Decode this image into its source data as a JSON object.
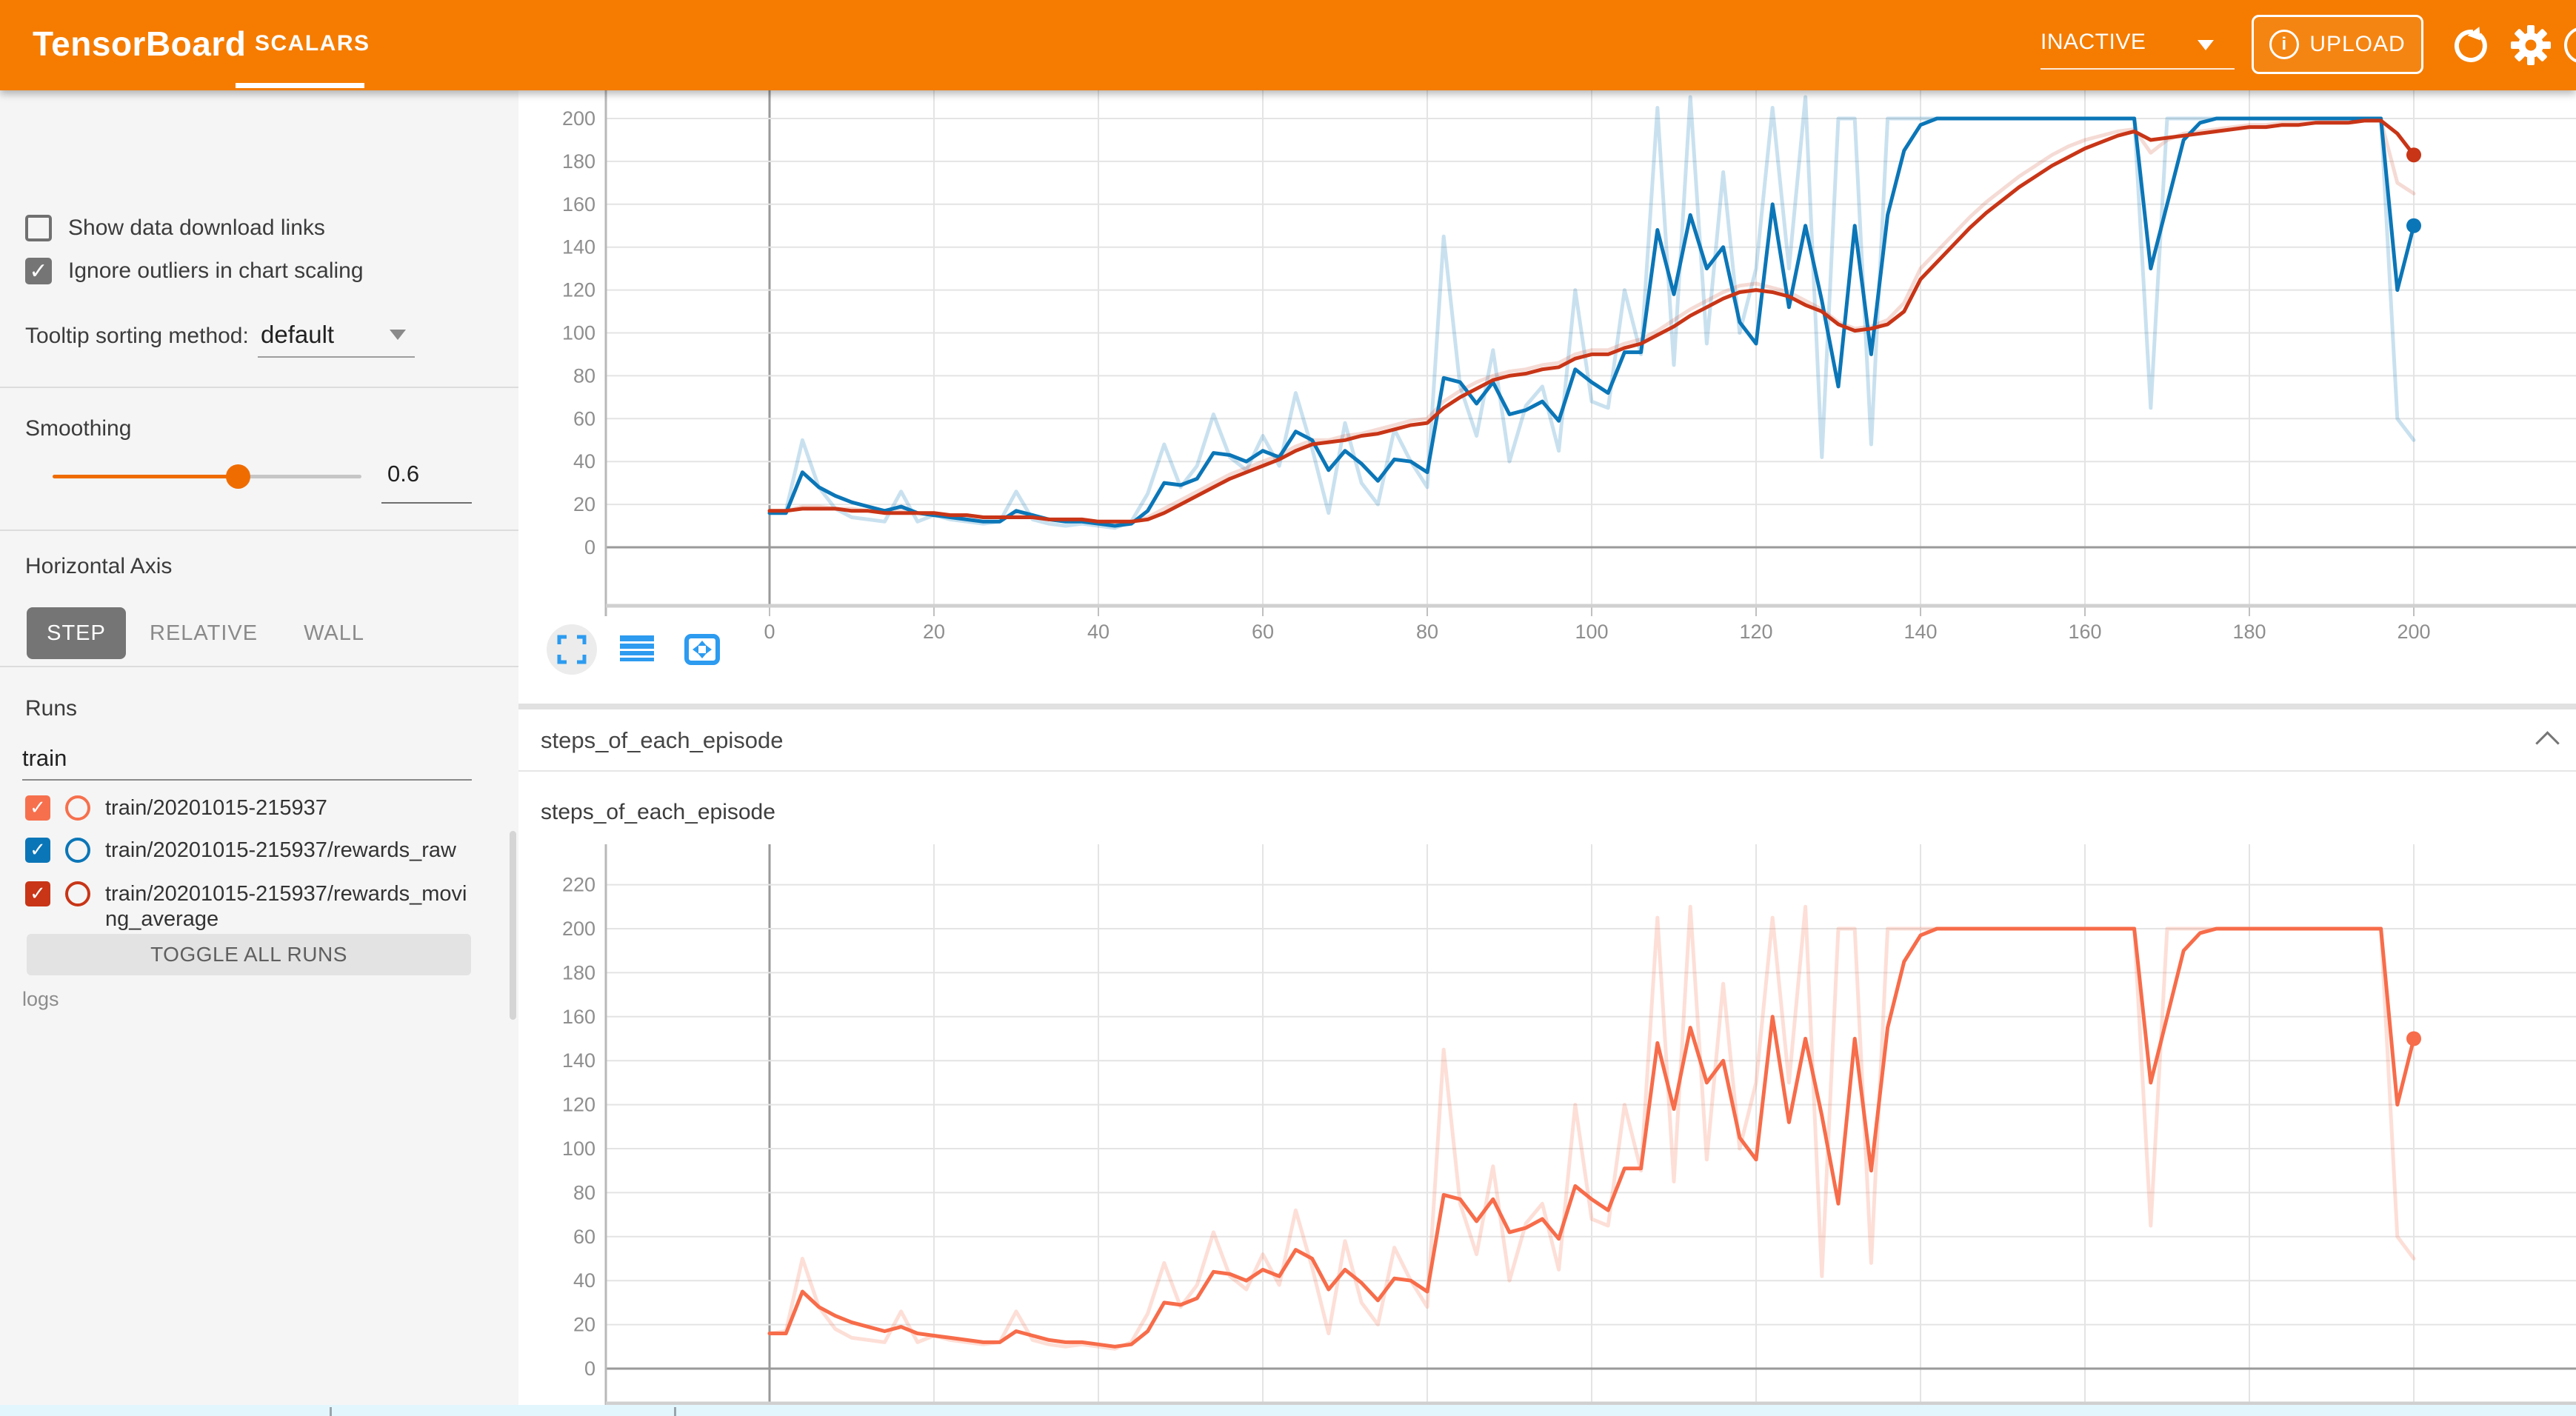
{
  "header": {
    "app_title": "TensorBoard",
    "active_tab": "SCALARS",
    "status_dropdown": "INACTIVE",
    "upload_button": "UPLOAD",
    "colors": {
      "header_bg": "#f57c00",
      "accent": "#ef6c00",
      "toolbar_icon_blue": "#2d9bf0"
    },
    "icons": [
      "info-icon",
      "refresh-icon",
      "gear-icon",
      "help-icon"
    ]
  },
  "sidebar": {
    "checkboxes": [
      {
        "label": "Show data download links",
        "checked": false
      },
      {
        "label": "Ignore outliers in chart scaling",
        "checked": true
      }
    ],
    "tooltip_sort": {
      "label": "Tooltip sorting method:",
      "value": "default"
    },
    "smoothing": {
      "label": "Smoothing",
      "value": "0.6",
      "fraction": 0.6
    },
    "horizontal_axis": {
      "label": "Horizontal Axis",
      "options": [
        "STEP",
        "RELATIVE",
        "WALL"
      ],
      "selected": "STEP"
    },
    "runs": {
      "label": "Runs",
      "filter_value": "train",
      "items": [
        {
          "label": "train/20201015-215937",
          "color": "#f6704d",
          "checked": true
        },
        {
          "label": "train/20201015-215937/rewards_raw",
          "color": "#0b76b7",
          "checked": true
        },
        {
          "label": "train/20201015-215937/rewards_moving_average",
          "color": "#c83517",
          "checked": true
        }
      ],
      "toggle_button": "TOGGLE ALL RUNS",
      "footer": "logs"
    }
  },
  "main": {
    "section_title": "steps_of_each_episode",
    "chart2_title": "steps_of_each_episode",
    "toolbar_icons": [
      "fullscreen-icon",
      "log-scale-icon",
      "fit-domain-icon"
    ]
  },
  "chart_data": [
    {
      "type": "line",
      "title": "",
      "x": {
        "start": 0,
        "step": 2,
        "end": 200
      },
      "xticks": [
        0,
        20,
        40,
        60,
        80,
        100,
        120,
        140,
        160,
        180,
        200
      ],
      "yticks": [
        0,
        20,
        40,
        60,
        80,
        100,
        120,
        140,
        160,
        180,
        200
      ],
      "ylim": [
        -27,
        213
      ],
      "grid": true,
      "series": [
        {
          "name": "train/20201015-215937/rewards_raw (unsmoothed)",
          "color": "#0b76b7",
          "opacity": 0.22,
          "width": 5,
          "values": [
            16,
            17,
            50,
            28,
            18,
            14,
            13,
            12,
            26,
            12,
            15,
            13,
            12,
            11,
            12,
            26,
            13,
            11,
            10,
            11,
            10,
            9,
            12,
            25,
            48,
            28,
            38,
            62,
            42,
            36,
            52,
            38,
            72,
            46,
            16,
            58,
            30,
            20,
            55,
            40,
            28,
            145,
            75,
            52,
            92,
            40,
            66,
            75,
            45,
            120,
            68,
            65,
            120,
            90,
            205,
            85,
            210,
            95,
            175,
            100,
            130,
            205,
            130,
            210,
            42,
            200,
            200,
            48,
            200,
            200,
            200,
            200,
            200,
            200,
            200,
            200,
            200,
            200,
            200,
            200,
            200,
            200,
            200,
            200,
            65,
            200,
            200,
            200,
            200,
            200,
            200,
            200,
            200,
            200,
            200,
            200,
            200,
            200,
            200,
            60,
            50
          ]
        },
        {
          "name": "train/20201015-215937/rewards_moving_average (unsmoothed)",
          "color": "#c83517",
          "opacity": 0.18,
          "width": 5,
          "values": [
            17,
            17,
            19,
            19,
            18,
            18,
            17,
            17,
            17,
            16,
            16,
            15,
            15,
            14,
            14,
            15,
            14,
            13,
            13,
            13,
            12,
            12,
            12,
            14,
            18,
            22,
            26,
            30,
            34,
            37,
            40,
            43,
            47,
            50,
            50,
            52,
            53,
            55,
            57,
            59,
            60,
            68,
            73,
            77,
            80,
            82,
            83,
            85,
            86,
            90,
            92,
            92,
            95,
            97,
            101,
            106,
            111,
            115,
            119,
            122,
            123,
            121,
            119,
            115,
            111,
            105,
            102,
            103,
            106,
            114,
            130,
            138,
            146,
            154,
            161,
            167,
            173,
            178,
            183,
            187,
            190,
            192,
            194,
            195,
            184,
            190,
            193,
            194,
            195,
            196,
            197,
            197,
            198,
            198,
            198,
            199,
            199,
            199,
            199,
            170,
            165
          ]
        },
        {
          "name": "train/20201015-215937/rewards_raw (smoothed 0.6)",
          "color": "#0b76b7",
          "opacity": 1,
          "width": 5,
          "values": [
            16,
            16,
            35,
            28,
            24,
            21,
            19,
            17,
            19,
            16,
            15,
            14,
            13,
            12,
            12,
            17,
            15,
            13,
            12,
            12,
            11,
            10,
            11,
            17,
            30,
            29,
            32,
            44,
            43,
            40,
            45,
            42,
            54,
            50,
            36,
            45,
            39,
            31,
            41,
            40,
            35,
            79,
            77,
            67,
            77,
            62,
            64,
            68,
            59,
            83,
            77,
            72,
            91,
            91,
            148,
            118,
            155,
            130,
            140,
            105,
            95,
            160,
            112,
            150,
            115,
            75,
            150,
            90,
            155,
            185,
            197,
            200,
            200,
            200,
            200,
            200,
            200,
            200,
            200,
            200,
            200,
            200,
            200,
            200,
            130,
            160,
            190,
            198,
            200,
            200,
            200,
            200,
            200,
            200,
            200,
            200,
            200,
            200,
            200,
            120,
            150
          ]
        },
        {
          "name": "train/20201015-215937/rewards_moving_average (smoothed 0.6)",
          "color": "#c83517",
          "opacity": 1,
          "width": 5,
          "values": [
            17,
            17,
            18,
            18,
            18,
            17,
            17,
            16,
            16,
            16,
            16,
            15,
            15,
            14,
            14,
            14,
            14,
            13,
            13,
            13,
            12,
            12,
            12,
            13,
            16,
            20,
            24,
            28,
            32,
            35,
            38,
            41,
            45,
            48,
            49,
            50,
            52,
            53,
            55,
            57,
            58,
            65,
            70,
            74,
            78,
            80,
            81,
            83,
            84,
            88,
            90,
            90,
            93,
            95,
            99,
            103,
            108,
            112,
            116,
            119,
            120,
            119,
            117,
            113,
            110,
            104,
            101,
            102,
            104,
            110,
            125,
            133,
            141,
            149,
            156,
            162,
            168,
            173,
            178,
            182,
            186,
            189,
            192,
            194,
            190,
            191,
            192,
            193,
            194,
            195,
            196,
            196,
            197,
            197,
            198,
            198,
            198,
            199,
            199,
            193,
            183
          ]
        }
      ],
      "end_dots": [
        {
          "x": 200,
          "y": 150,
          "color": "#0b76b7"
        },
        {
          "x": 200,
          "y": 183,
          "color": "#c83517"
        }
      ]
    },
    {
      "type": "line",
      "title": "steps_of_each_episode",
      "x": {
        "start": 0,
        "step": 2,
        "end": 200
      },
      "xticks": [
        0,
        20,
        40,
        60,
        80,
        100,
        120,
        140,
        160,
        180,
        200
      ],
      "yticks": [
        0,
        20,
        40,
        60,
        80,
        100,
        120,
        140,
        160,
        180,
        200,
        220
      ],
      "ylim": [
        -16,
        240
      ],
      "grid": true,
      "series": [
        {
          "name": "train/20201015-215937 steps (unsmoothed)",
          "color": "#f76c4a",
          "opacity": 0.22,
          "width": 5,
          "values": [
            16,
            17,
            50,
            28,
            18,
            14,
            13,
            12,
            26,
            12,
            15,
            13,
            12,
            11,
            12,
            26,
            13,
            11,
            10,
            11,
            10,
            9,
            12,
            25,
            48,
            28,
            38,
            62,
            42,
            36,
            52,
            38,
            72,
            46,
            16,
            58,
            30,
            20,
            55,
            40,
            28,
            145,
            75,
            52,
            92,
            40,
            66,
            75,
            45,
            120,
            68,
            65,
            120,
            90,
            205,
            85,
            210,
            95,
            175,
            100,
            130,
            205,
            130,
            210,
            42,
            200,
            200,
            48,
            200,
            200,
            200,
            200,
            200,
            200,
            200,
            200,
            200,
            200,
            200,
            200,
            200,
            200,
            200,
            200,
            65,
            200,
            200,
            200,
            200,
            200,
            200,
            200,
            200,
            200,
            200,
            200,
            200,
            200,
            200,
            60,
            50
          ]
        },
        {
          "name": "train/20201015-215937 steps (smoothed 0.6)",
          "color": "#f76c4a",
          "opacity": 1,
          "width": 5,
          "values": [
            16,
            16,
            35,
            28,
            24,
            21,
            19,
            17,
            19,
            16,
            15,
            14,
            13,
            12,
            12,
            17,
            15,
            13,
            12,
            12,
            11,
            10,
            11,
            17,
            30,
            29,
            32,
            44,
            43,
            40,
            45,
            42,
            54,
            50,
            36,
            45,
            39,
            31,
            41,
            40,
            35,
            79,
            77,
            67,
            77,
            62,
            64,
            68,
            59,
            83,
            77,
            72,
            91,
            91,
            148,
            118,
            155,
            130,
            140,
            105,
            95,
            160,
            112,
            150,
            115,
            75,
            150,
            90,
            155,
            185,
            197,
            200,
            200,
            200,
            200,
            200,
            200,
            200,
            200,
            200,
            200,
            200,
            200,
            200,
            130,
            160,
            190,
            198,
            200,
            200,
            200,
            200,
            200,
            200,
            200,
            200,
            200,
            200,
            200,
            120,
            150
          ]
        }
      ],
      "end_dots": [
        {
          "x": 200,
          "y": 150,
          "color": "#f76c4a"
        }
      ]
    }
  ]
}
